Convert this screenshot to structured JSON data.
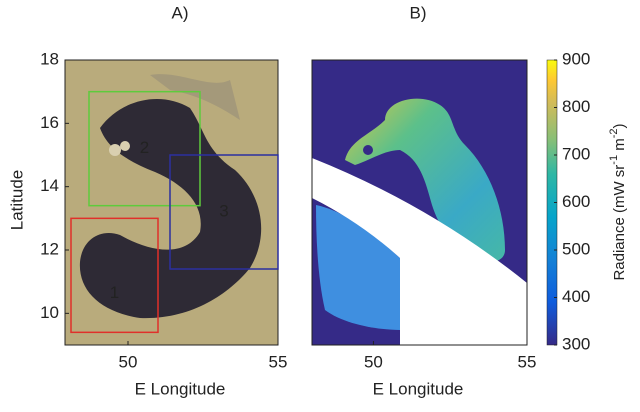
{
  "chart_data": [
    {
      "type": "map",
      "title": "A)",
      "xlabel": "E Longitude",
      "ylabel": "Latitude",
      "xlim": [
        47.9,
        55
      ],
      "ylim": [
        9,
        18
      ],
      "xticks": [
        50,
        55
      ],
      "yticks": [
        10,
        12,
        14,
        16,
        18
      ],
      "regions": [
        {
          "name": "1",
          "color": "#e0302a",
          "lon": [
            48.1,
            51
          ],
          "lat": [
            9.4,
            13
          ]
        },
        {
          "name": "2",
          "color": "#5ecb3c",
          "lon": [
            48.7,
            52.4
          ],
          "lat": [
            13.4,
            17
          ]
        },
        {
          "name": "3",
          "color": "#2b2fa0",
          "lon": [
            51.4,
            55
          ],
          "lat": [
            11.4,
            15
          ]
        }
      ]
    },
    {
      "type": "map",
      "title": "B)",
      "xlabel": "E Longitude",
      "xlim": [
        48,
        55
      ],
      "ylim": [
        9,
        18
      ],
      "xticks": [
        50,
        55
      ],
      "colorbar": {
        "label": [
          "Radiance (mW sr",
          "-1",
          " m",
          "-2",
          ")"
        ],
        "lim": [
          300,
          900
        ],
        "ticks": [
          300,
          400,
          500,
          600,
          700,
          800,
          900
        ]
      }
    }
  ]
}
